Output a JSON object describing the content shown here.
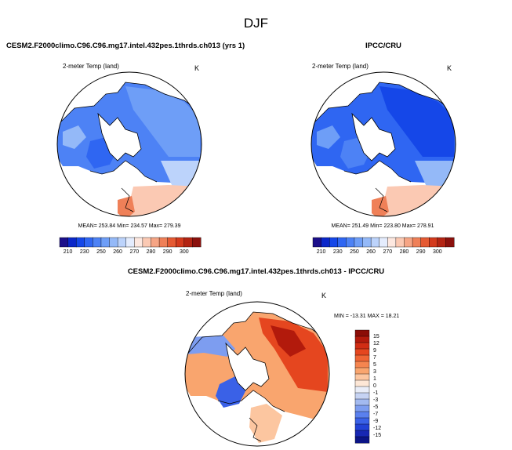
{
  "figure": {
    "title": "DJF"
  },
  "colors": {
    "land_ocean_white": "#ffffff",
    "coast": "#000000"
  },
  "chart_data": [
    {
      "type": "heatmap",
      "projection": "north-polar-stereographic",
      "title": "CESM2.F2000climo.C96.C96.mg17.intel.432pes.1thrds.ch013 (yrs 1)",
      "variable": "2-meter Temp (land)",
      "units": "K",
      "stats_text": "MEAN= 253.84   Min= 234.57   Max= 279.39",
      "mean": 253.84,
      "min": 234.57,
      "max": 279.39,
      "colorbar_ticks": [
        "210",
        "230",
        "250",
        "260",
        "270",
        "280",
        "290",
        "300"
      ],
      "colorbar_colors": [
        "#1c0f8a",
        "#0b27c9",
        "#1547e8",
        "#2f66f2",
        "#4d82f5",
        "#6e9ef7",
        "#94b9f8",
        "#bcd3fb",
        "#e4ecfd",
        "#fde8e0",
        "#fbc9b3",
        "#f6a585",
        "#ef8058",
        "#e55a33",
        "#d33a1d",
        "#b32413",
        "#8b110d"
      ]
    },
    {
      "type": "heatmap",
      "projection": "north-polar-stereographic",
      "title": "IPCC/CRU",
      "variable": "2-meter Temp (land)",
      "units": "K",
      "stats_text": "MEAN= 251.49   Min= 223.80   Max= 278.91",
      "mean": 251.49,
      "min": 223.8,
      "max": 278.91,
      "colorbar_ticks": [
        "210",
        "230",
        "250",
        "260",
        "270",
        "280",
        "290",
        "300"
      ],
      "colorbar_colors": [
        "#1c0f8a",
        "#0b27c9",
        "#1547e8",
        "#2f66f2",
        "#4d82f5",
        "#6e9ef7",
        "#94b9f8",
        "#bcd3fb",
        "#e4ecfd",
        "#fde8e0",
        "#fbc9b3",
        "#f6a585",
        "#ef8058",
        "#e55a33",
        "#d33a1d",
        "#b32413",
        "#8b110d"
      ]
    },
    {
      "type": "heatmap",
      "projection": "north-polar-stereographic",
      "title": "CESM2.F2000climo.C96.C96.mg17.intel.432pes.1thrds.ch013 - IPCC/CRU",
      "variable": "2-meter Temp (land)",
      "units": "K",
      "stats_text": "MIN = -13.31  MAX =  18.21",
      "min": -13.31,
      "max": 18.21,
      "colorbar_ticks": [
        "15",
        "12",
        "9",
        "7",
        "5",
        "3",
        "1",
        "0",
        "-1",
        "-3",
        "-5",
        "-7",
        "-9",
        "-12",
        "-15"
      ],
      "colorbar_colors": [
        "#8b0d07",
        "#b21a0c",
        "#d12d14",
        "#e5461f",
        "#ef6535",
        "#f5854f",
        "#f9a56e",
        "#fcc6a0",
        "#fde7d6",
        "#e9edf8",
        "#c6d3f3",
        "#a3baf0",
        "#7d9df0",
        "#5a80ee",
        "#3a61e7",
        "#2242d6",
        "#1727b3",
        "#0b1486"
      ]
    }
  ]
}
